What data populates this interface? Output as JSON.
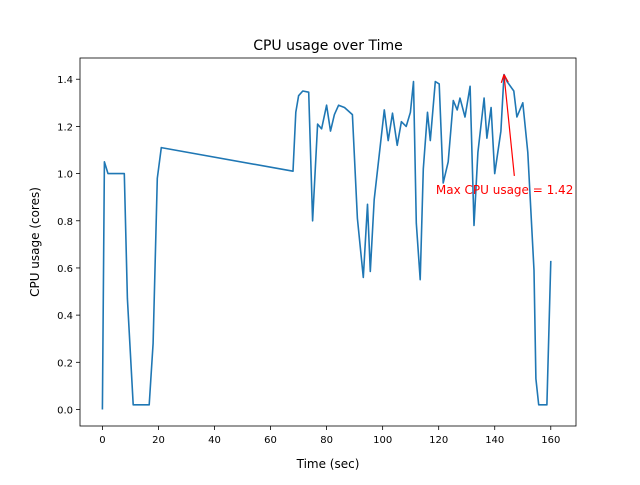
{
  "chart_data": {
    "type": "line",
    "title": "CPU usage over Time",
    "xlabel": "Time (sec)",
    "ylabel": "CPU usage (cores)",
    "xlim": [
      -8,
      169
    ],
    "ylim": [
      -0.07,
      1.49
    ],
    "xticks": [
      0,
      20,
      40,
      60,
      80,
      100,
      120,
      140,
      160
    ],
    "yticks": [
      0.0,
      0.2,
      0.4,
      0.6,
      0.8,
      1.0,
      1.2,
      1.4
    ],
    "ytick_labels": [
      "0.0",
      "0.2",
      "0.4",
      "0.6",
      "0.8",
      "1.0",
      "1.2",
      "1.4"
    ],
    "grid": false,
    "series": [
      {
        "name": "CPU usage",
        "color": "#1f77b4",
        "x": [
          0,
          0.7,
          2,
          7.8,
          8.9,
          11,
          16.7,
          18.1,
          19.6,
          21,
          68,
          69,
          70,
          71.5,
          73.6,
          75,
          76.8,
          78.2,
          80,
          81.4,
          82.8,
          84.3,
          86.4,
          89.2,
          91,
          93.1,
          94.6,
          95.6,
          97,
          100.6,
          102,
          103.5,
          105.2,
          106.7,
          108.4,
          109.9,
          111,
          112,
          113.4,
          114.5,
          116,
          117,
          118.8,
          120.2,
          121.6,
          123.4,
          125.2,
          126.6,
          127.6,
          129.4,
          131.2,
          132.6,
          134,
          136.2,
          137.2,
          138.7,
          140,
          142.2,
          143.3,
          144.4,
          146.8,
          147.9,
          150,
          151.8,
          154,
          154.7,
          155.7,
          158.6,
          160
        ],
        "y": [
          0,
          1.05,
          1.0,
          1.0,
          0.47,
          0.02,
          0.02,
          0.28,
          0.98,
          1.11,
          1.01,
          1.26,
          1.33,
          1.35,
          1.345,
          0.8,
          1.21,
          1.19,
          1.29,
          1.18,
          1.25,
          1.29,
          1.28,
          1.25,
          0.81,
          0.56,
          0.87,
          0.585,
          0.89,
          1.27,
          1.14,
          1.256,
          1.12,
          1.22,
          1.2,
          1.26,
          1.39,
          0.79,
          0.55,
          1.02,
          1.26,
          1.14,
          1.39,
          1.38,
          0.96,
          1.05,
          1.31,
          1.27,
          1.32,
          1.24,
          1.37,
          0.78,
          1.09,
          1.32,
          1.15,
          1.28,
          1.0,
          1.18,
          1.42,
          1.39,
          1.35,
          1.24,
          1.3,
          1.09,
          0.59,
          0.13,
          0.02,
          0.02,
          0.63
        ]
      }
    ],
    "annotation": {
      "text": "Max CPU usage = 1.42",
      "color": "#ff0000",
      "xy": [
        143.3,
        1.42
      ],
      "xytext": [
        119,
        0.93
      ],
      "arrow_tail": [
        147,
        0.99
      ]
    }
  }
}
